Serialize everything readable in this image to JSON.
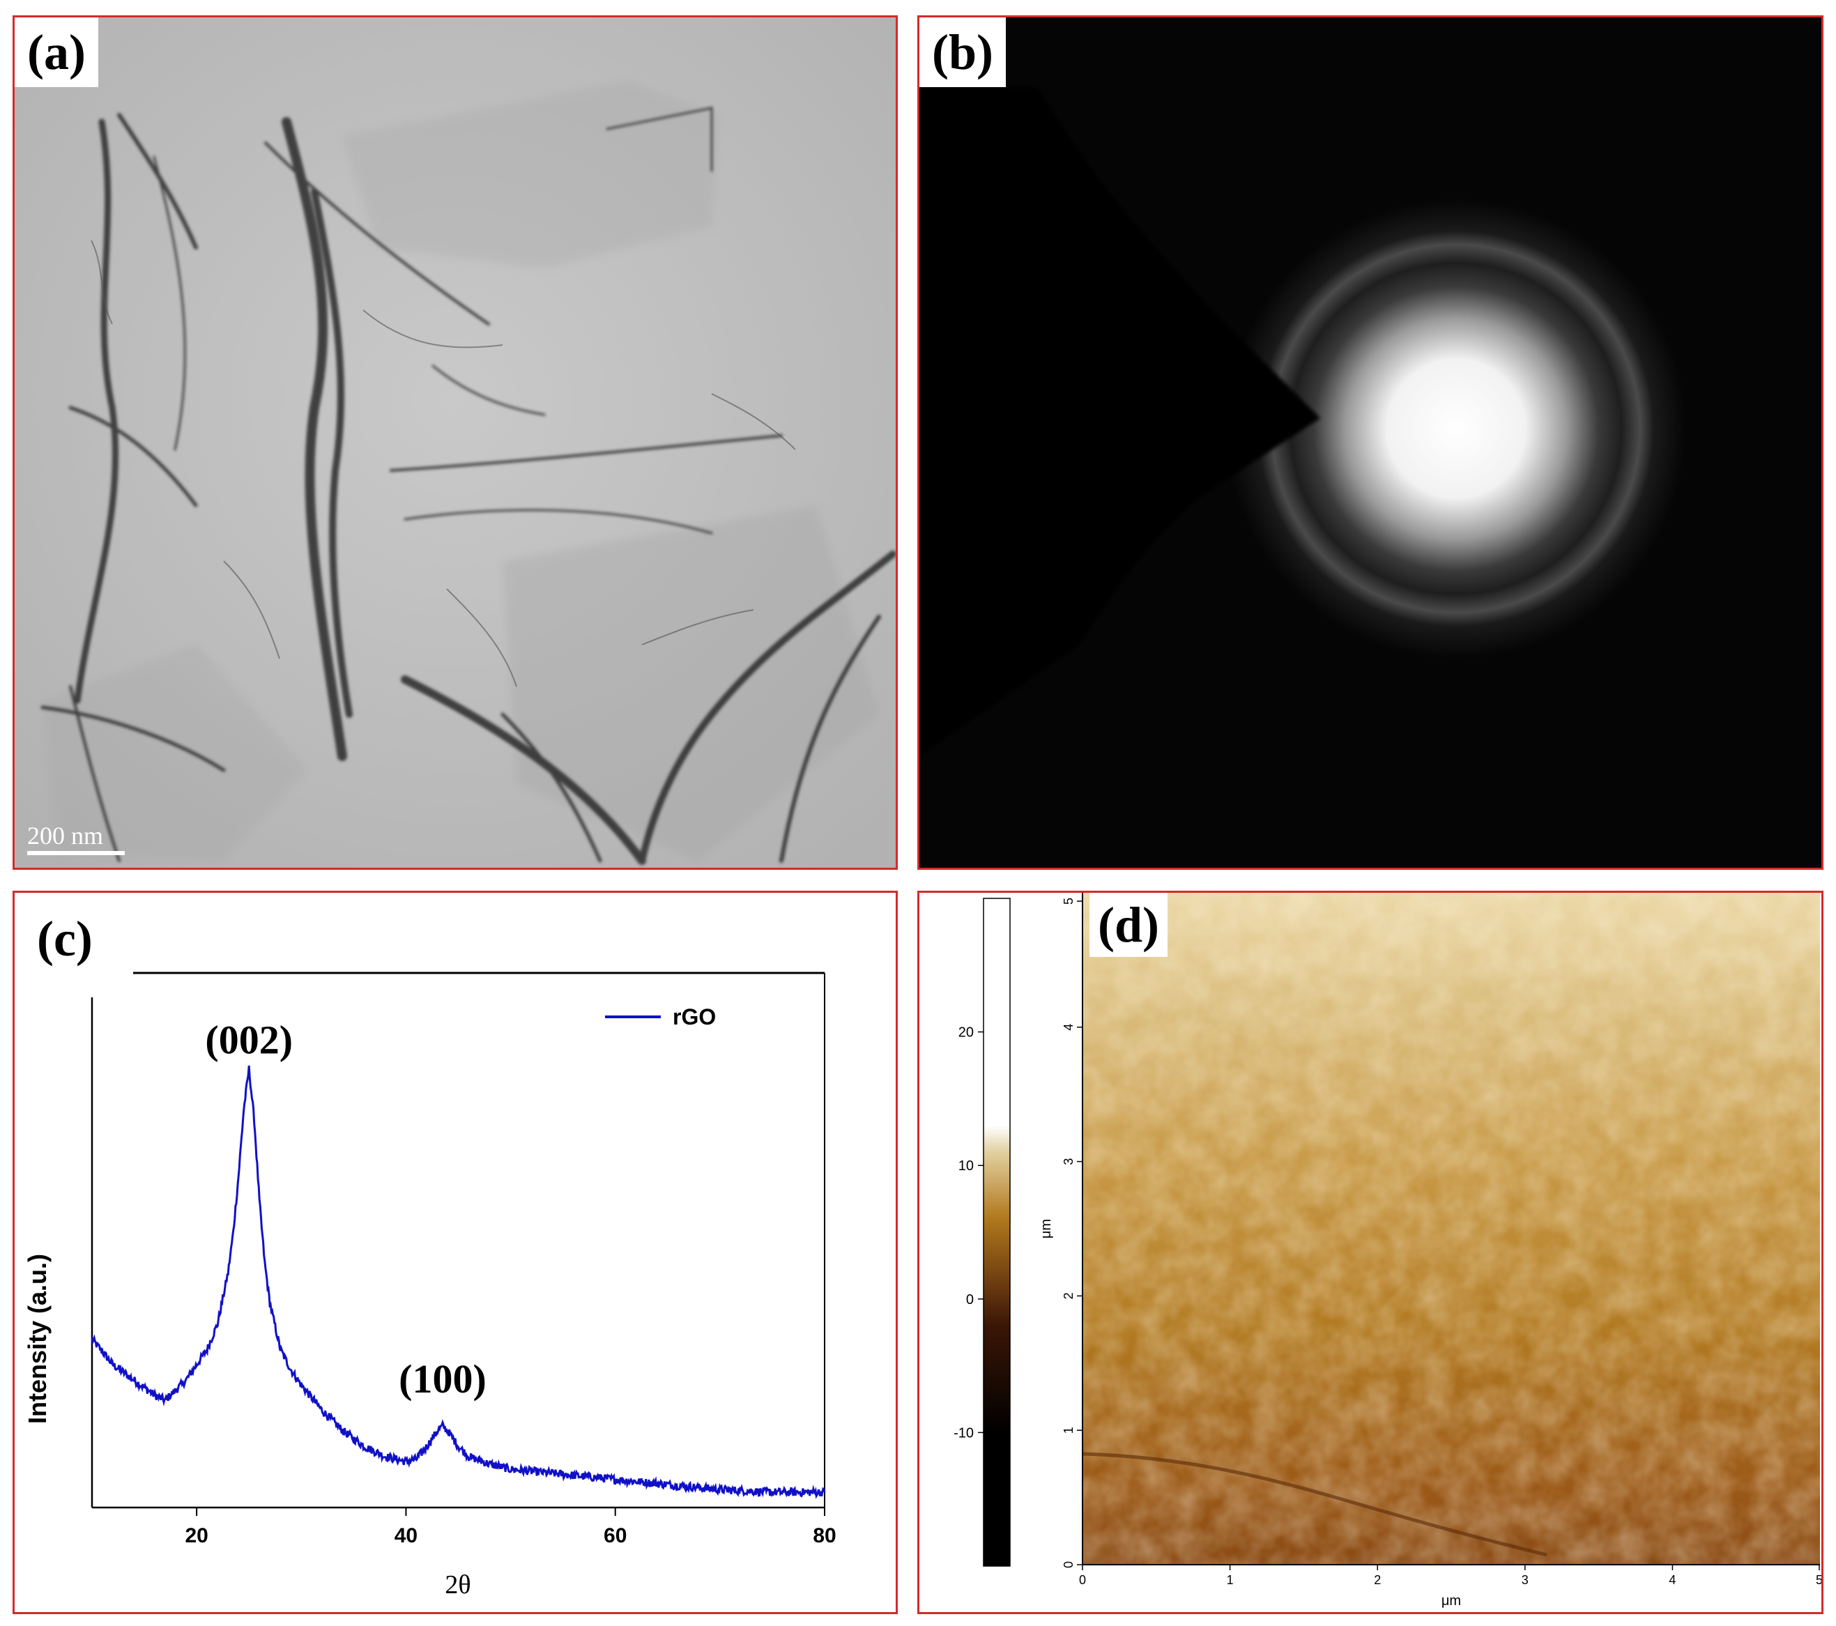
{
  "panels": {
    "a": {
      "label": "(a)",
      "scale_bar": "200 nm"
    },
    "b": {
      "label": "(b)"
    },
    "c": {
      "label": "(c)"
    },
    "d": {
      "label": "(d)"
    }
  },
  "chart_data": [
    {
      "panel": "c",
      "type": "line",
      "title": "",
      "xlabel": "2θ",
      "ylabel": "Intensity (a.u.)",
      "xlim": [
        10,
        80
      ],
      "ylim": [
        0,
        100
      ],
      "xticks": [
        20,
        40,
        60,
        80
      ],
      "legend": {
        "position": "top-right",
        "entries": [
          "rGO"
        ]
      },
      "annotations": [
        {
          "text": "(002)",
          "x": 25,
          "y": 86
        },
        {
          "text": "(100)",
          "x": 43.5,
          "y": 16
        }
      ],
      "series": [
        {
          "name": "rGO",
          "color": "#1010c8",
          "x": [
            10,
            12,
            14,
            16,
            17,
            18,
            19,
            20,
            21,
            22,
            23,
            23.5,
            24,
            24.5,
            25,
            25.5,
            26,
            26.5,
            27,
            28,
            29,
            30,
            32,
            34,
            36,
            38,
            40,
            41,
            42,
            43,
            43.5,
            44,
            45,
            46,
            48,
            50,
            55,
            60,
            65,
            70,
            75,
            80
          ],
          "values": [
            33,
            28,
            25,
            22,
            21,
            23,
            25,
            28,
            31,
            36,
            46,
            54,
            65,
            78,
            86,
            76,
            60,
            48,
            40,
            31,
            27,
            24,
            19,
            15,
            12,
            10,
            9,
            9.5,
            12,
            15,
            16,
            15,
            12,
            10,
            8.5,
            7.5,
            6.5,
            5.5,
            4.5,
            3.5,
            3,
            3
          ]
        }
      ]
    },
    {
      "panel": "d",
      "type": "heatmap",
      "xlabel": "μm",
      "ylabel": "μm",
      "xlim": [
        0,
        5
      ],
      "ylim": [
        0,
        5
      ],
      "xticks": [
        0,
        1,
        2,
        3,
        4,
        5
      ],
      "yticks": [
        0,
        1,
        2,
        3,
        4,
        5
      ],
      "colorbar": {
        "min": -20,
        "max": 30,
        "ticks": [
          -10,
          0,
          10,
          20
        ],
        "colors": [
          "#000000",
          "#5a2a08",
          "#b0781c",
          "#e6d4a6",
          "#ffffff"
        ]
      }
    }
  ]
}
